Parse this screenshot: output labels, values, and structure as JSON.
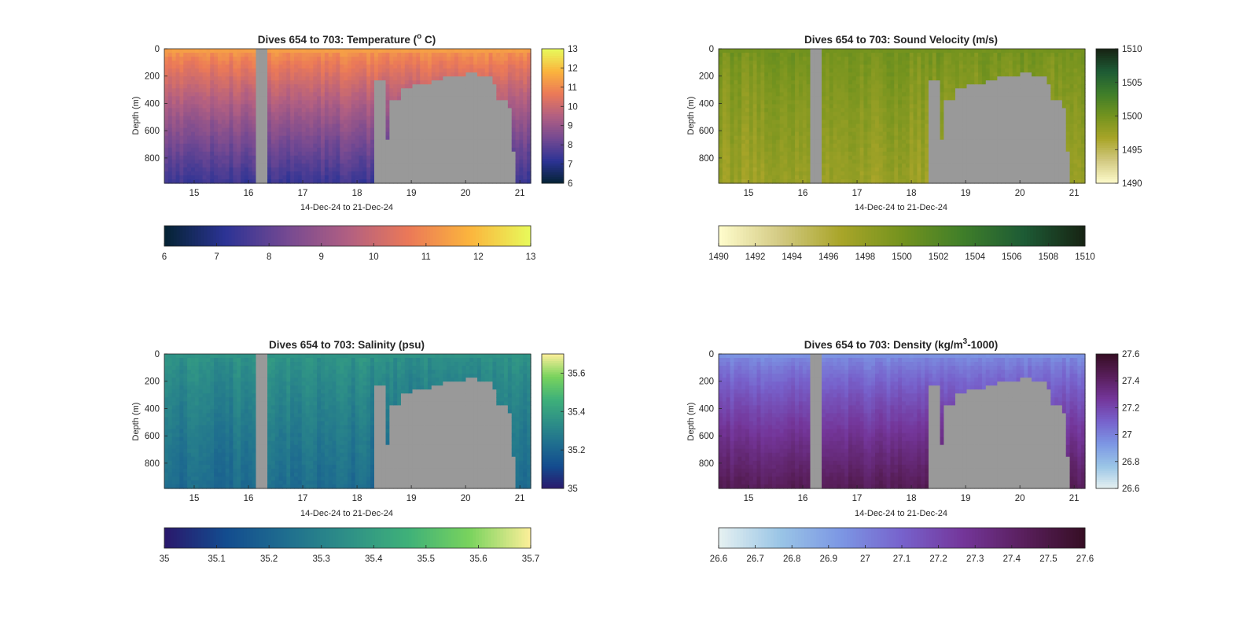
{
  "figure": {
    "background": "#ffffff",
    "nodata_color": "#999999",
    "axis_color": "#262626"
  },
  "chart_data": [
    {
      "type": "heatmap",
      "title": "Dives 654 to 703: Temperature (° C)",
      "title_main": "Dives 654 to 703: Temperature (",
      "title_sup": "o",
      "title_tail": " C)",
      "xlabel": "14-Dec-24 to 21-Dec-24",
      "ylabel": "Depth (m)",
      "xlim": [
        14.45,
        21.2
      ],
      "ylim": [
        0,
        985
      ],
      "y_reversed": true,
      "xticks": [
        15,
        16,
        17,
        18,
        19,
        20,
        21
      ],
      "yticks": [
        0,
        200,
        400,
        600,
        800
      ],
      "colormap": "thermal",
      "clim": [
        6,
        13
      ],
      "colorbar_vertical_ticks": [
        6,
        7,
        8,
        9,
        10,
        11,
        12,
        13
      ],
      "colorbar_horizontal_ticks": [
        6,
        7,
        8,
        9,
        10,
        11,
        12,
        13
      ],
      "surface_value": 11.4,
      "bottom_value": 7.4,
      "variability": 0.4
    },
    {
      "type": "heatmap",
      "title": "Dives 654 to 703: Sound Velocity (m/s)",
      "title_main": "Dives 654 to 703: Sound Velocity (m/s)",
      "title_sup": "",
      "title_tail": "",
      "xlabel": "14-Dec-24 to 21-Dec-24",
      "ylabel": "Depth (m)",
      "xlim": [
        14.45,
        21.2
      ],
      "ylim": [
        0,
        985
      ],
      "y_reversed": true,
      "xticks": [
        15,
        16,
        17,
        18,
        19,
        20,
        21
      ],
      "yticks": [
        0,
        200,
        400,
        600,
        800
      ],
      "colormap": "speed",
      "clim": [
        1490,
        1510
      ],
      "colorbar_vertical_ticks": [
        1490,
        1495,
        1500,
        1505,
        1510
      ],
      "colorbar_horizontal_ticks": [
        1490,
        1492,
        1494,
        1496,
        1498,
        1500,
        1502,
        1504,
        1506,
        1508,
        1510
      ],
      "surface_value": 1500,
      "bottom_value": 1497.5,
      "variability": 1.5
    },
    {
      "type": "heatmap",
      "title": "Dives 654 to 703: Salinity (psu)",
      "title_main": "Dives 654 to 703: Salinity (psu)",
      "title_sup": "",
      "title_tail": "",
      "xlabel": "14-Dec-24 to 21-Dec-24",
      "ylabel": "Depth (m)",
      "xlim": [
        14.45,
        21.2
      ],
      "ylim": [
        0,
        985
      ],
      "y_reversed": true,
      "xticks": [
        15,
        16,
        17,
        18,
        19,
        20,
        21
      ],
      "yticks": [
        0,
        200,
        400,
        600,
        800
      ],
      "colormap": "haline",
      "clim": [
        35,
        35.7
      ],
      "colorbar_vertical_ticks": [
        35,
        35.2,
        35.4,
        35.6
      ],
      "colorbar_horizontal_ticks": [
        35,
        35.1,
        35.2,
        35.3,
        35.4,
        35.5,
        35.6,
        35.7
      ],
      "surface_value": 35.36,
      "bottom_value": 35.22,
      "variability": 0.05
    },
    {
      "type": "heatmap",
      "title": "Dives 654 to 703: Density (kg/m³-1000)",
      "title_main": "Dives 654 to 703: Density (kg/m",
      "title_sup": "3",
      "title_tail": "-1000)",
      "xlabel": "14-Dec-24 to 21-Dec-24",
      "ylabel": "Depth (m)",
      "xlim": [
        14.45,
        21.2
      ],
      "ylim": [
        0,
        985
      ],
      "y_reversed": true,
      "xticks": [
        15,
        16,
        17,
        18,
        19,
        20,
        21
      ],
      "yticks": [
        0,
        200,
        400,
        600,
        800
      ],
      "colormap": "dense",
      "clim": [
        26.6,
        27.6
      ],
      "colorbar_vertical_ticks": [
        26.6,
        26.8,
        27,
        27.2,
        27.4,
        27.6
      ],
      "colorbar_horizontal_ticks": [
        26.6,
        26.7,
        26.8,
        26.9,
        27,
        27.1,
        27.2,
        27.3,
        27.4,
        27.5,
        27.6
      ],
      "surface_value": 26.95,
      "bottom_value": 27.45,
      "variability": 0.05
    }
  ],
  "coverage": {
    "gap_time_range": [
      16.17,
      16.32
    ],
    "bottom_profile": [
      {
        "x": 18.35,
        "max_depth": 230
      },
      {
        "x": 18.5,
        "max_depth": 675
      },
      {
        "x": 18.62,
        "max_depth": 370
      },
      {
        "x": 18.8,
        "max_depth": 290
      },
      {
        "x": 19.0,
        "max_depth": 270
      },
      {
        "x": 19.2,
        "max_depth": 250
      },
      {
        "x": 19.4,
        "max_depth": 225
      },
      {
        "x": 19.6,
        "max_depth": 205
      },
      {
        "x": 19.8,
        "max_depth": 190
      },
      {
        "x": 20.0,
        "max_depth": 185
      },
      {
        "x": 20.2,
        "max_depth": 195
      },
      {
        "x": 20.35,
        "max_depth": 215
      },
      {
        "x": 20.5,
        "max_depth": 260
      },
      {
        "x": 20.6,
        "max_depth": 390
      },
      {
        "x": 20.75,
        "max_depth": 440
      },
      {
        "x": 20.85,
        "max_depth": 760
      },
      {
        "x": 20.93,
        "max_depth": 985
      }
    ]
  }
}
